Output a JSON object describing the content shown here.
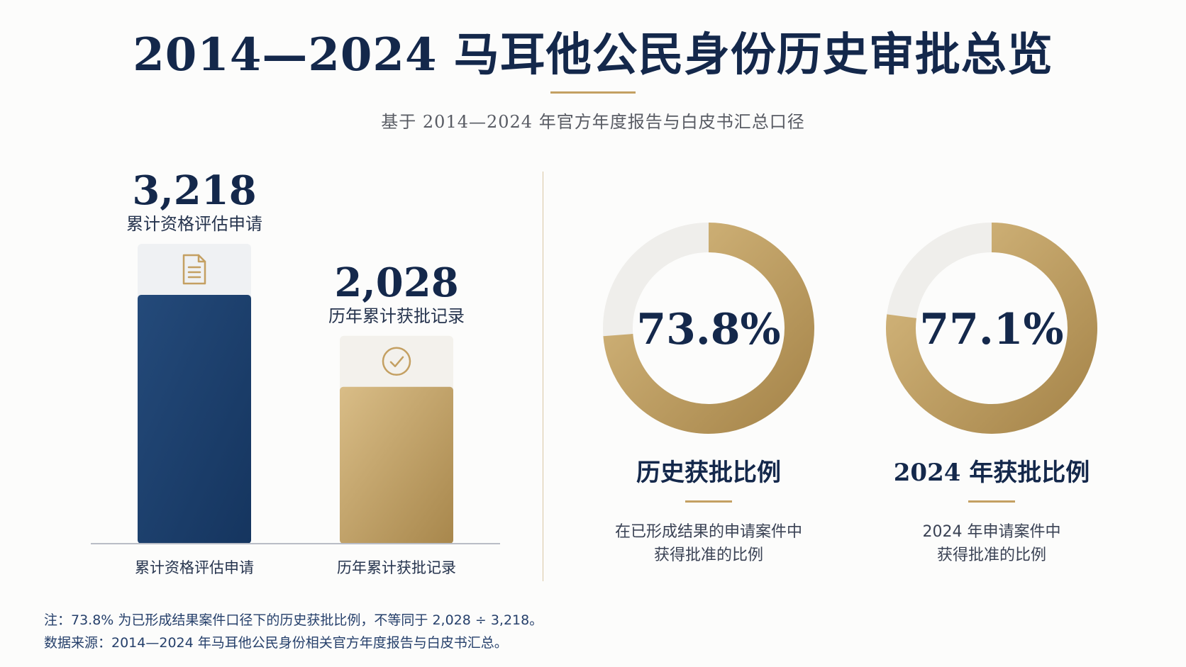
{
  "title": "2014—2024 马耳他公民身份历史审批总览",
  "subtitle": "基于 2014—2024 年官方年度报告与白皮书汇总口径",
  "colors": {
    "navy": "#1a3d6b",
    "gold": "#c4a062",
    "track": "#efeeeb",
    "text": "#14284b"
  },
  "chart_data": [
    {
      "type": "bar",
      "categories": [
        "累计资格评估申请",
        "历年累计获批记录"
      ],
      "values": [
        3218,
        2028
      ],
      "value_labels": [
        "3,218",
        "2,028"
      ],
      "value_captions": [
        "累计资格评估申请",
        "历年累计获批记录"
      ],
      "icons": [
        "document-icon",
        "check-circle-icon"
      ],
      "colors": [
        "#1a3d6b",
        "#c4a062"
      ]
    },
    {
      "type": "pie",
      "style": "donut",
      "items": [
        {
          "value": 73.8,
          "label": "73.8%",
          "heading": "历史获批比例",
          "desc": [
            "在已形成结果的申请案件中",
            "获得批准的比例"
          ]
        },
        {
          "value": 77.1,
          "label": "77.1%",
          "heading": "2024 年获批比例",
          "desc": [
            "2024 年申请案件中",
            "获得批准的比例"
          ]
        }
      ]
    }
  ],
  "notes": [
    "注：73.8% 为已形成结果案件口径下的历史获批比例，不等同于 2,028 ÷ 3,218。",
    "数据来源：2014—2024 年马耳他公民身份相关官方年度报告与白皮书汇总。"
  ]
}
